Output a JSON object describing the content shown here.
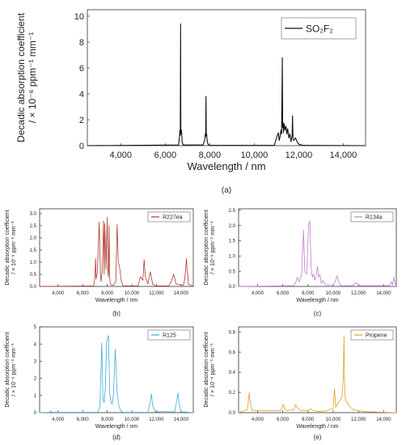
{
  "figure": {
    "panel_labels": [
      "(a)",
      "(b)",
      "(c)",
      "(d)",
      "(e)"
    ]
  },
  "chart_data": [
    {
      "id": "a",
      "type": "line",
      "panel_label": "(a)",
      "xlabel": "Wavelength / nm",
      "ylabel_line1": "Decadic absorption coefficient",
      "ylabel_line2": "/ × 10⁻⁶ ppm⁻¹ mm⁻¹",
      "xlim": [
        2500,
        15000
      ],
      "ylim": [
        0,
        10.5
      ],
      "xticks": [
        4000,
        6000,
        8000,
        10000,
        12000,
        14000
      ],
      "xtick_labels": [
        "4,000",
        "6,000",
        "8,000",
        "10,000",
        "12,000",
        "14,000"
      ],
      "yticks": [
        0,
        2,
        4,
        6,
        8,
        10
      ],
      "ytick_labels": [
        "0",
        "2",
        "4",
        "6",
        "8",
        "10"
      ],
      "legend": "top-right",
      "series": [
        {
          "name": "SO₂F₂",
          "color": "#111111",
          "x": [
            2500,
            6600,
            6640,
            6660,
            6675,
            6690,
            6700,
            6715,
            6730,
            6760,
            6800,
            7700,
            7780,
            7800,
            7815,
            7830,
            7845,
            7860,
            7880,
            7920,
            8000,
            10900,
            11000,
            11080,
            11120,
            11160,
            11200,
            11230,
            11260,
            11275,
            11290,
            11310,
            11340,
            11380,
            11420,
            11460,
            11500,
            11550,
            11600,
            11650,
            11700,
            11720,
            11740,
            11780,
            11850,
            11950,
            12050,
            12200,
            15000
          ],
          "y": [
            0,
            0.05,
            0.7,
            1.2,
            0.8,
            9.4,
            1.1,
            0.9,
            1.2,
            0.3,
            0.05,
            0.05,
            0.5,
            0.9,
            0.7,
            3.8,
            0.8,
            0.9,
            0.4,
            0.1,
            0.02,
            0.02,
            0.6,
            1.0,
            0.4,
            0.7,
            1.2,
            0.9,
            6.8,
            1.4,
            1.8,
            1.0,
            1.7,
            1.2,
            1.5,
            0.9,
            1.3,
            0.6,
            0.9,
            0.3,
            0.8,
            2.3,
            0.5,
            0.4,
            0.6,
            0.2,
            0.08,
            0.02,
            0
          ]
        }
      ]
    },
    {
      "id": "b",
      "type": "line",
      "panel_label": "(b)",
      "xlabel": "Wavelength / nm",
      "ylabel_line1": "Decadic absorption coefficient",
      "ylabel_line2": "/ × 10⁻⁶ ppm⁻¹ mm⁻¹",
      "xlim": [
        2500,
        15000
      ],
      "ylim": [
        0,
        3.2
      ],
      "xticks": [
        4000,
        6000,
        8000,
        10000,
        12000,
        14000
      ],
      "xtick_labels": [
        "4,000",
        "6,000",
        "8,000",
        "10,000",
        "12,000",
        "14,000"
      ],
      "yticks": [
        0,
        0.5,
        1.0,
        1.5,
        2.0,
        2.5,
        3.0
      ],
      "ytick_labels": [
        "0.0",
        "0.5",
        "1.0",
        "1.5",
        "2.0",
        "2.5",
        "3.0"
      ],
      "legend": "top-right",
      "series": [
        {
          "name": "R227ea",
          "color": "#b03a2e",
          "x": [
            2500,
            6900,
            7000,
            7050,
            7100,
            7200,
            7350,
            7450,
            7500,
            7600,
            7700,
            7750,
            7800,
            7900,
            8000,
            8050,
            8100,
            8150,
            8200,
            8250,
            8350,
            8500,
            8700,
            8800,
            8900,
            9000,
            9150,
            9300,
            10500,
            10700,
            10900,
            11000,
            11100,
            11300,
            11500,
            11700,
            11900,
            13000,
            13200,
            13400,
            13600,
            14200,
            14300,
            14450,
            14500,
            14550,
            14600,
            15000
          ],
          "y": [
            0,
            0.02,
            0.4,
            1.15,
            0.3,
            0.6,
            2.65,
            0.5,
            0.2,
            0.7,
            2.7,
            0.5,
            2.6,
            0.7,
            2.85,
            0.6,
            0.4,
            2.5,
            0.4,
            0.1,
            0.05,
            0.05,
            0.2,
            2.55,
            1.0,
            0.8,
            0.2,
            0.02,
            0.02,
            0.4,
            0.25,
            1.1,
            0.4,
            0.1,
            0.6,
            0.1,
            0.02,
            0.02,
            0.2,
            0.5,
            0.1,
            0.05,
            0.3,
            1.15,
            0.6,
            0.5,
            0.1,
            0
          ]
        }
      ]
    },
    {
      "id": "c",
      "type": "line",
      "panel_label": "(c)",
      "xlabel": "Wavelength / nm",
      "ylabel_line1": "Decadic absorption coefficient",
      "ylabel_line2": "/ × 10⁻⁶ ppm⁻¹ mm⁻¹",
      "xlim": [
        2500,
        15000
      ],
      "ylim": [
        0,
        2.55
      ],
      "xticks": [
        4000,
        6000,
        8000,
        10000,
        12000,
        14000
      ],
      "xtick_labels": [
        "4,000",
        "6,000",
        "8,000",
        "10,000",
        "12,000",
        "14,000"
      ],
      "yticks": [
        0,
        0.5,
        1.0,
        1.5,
        2.0,
        2.5
      ],
      "ytick_labels": [
        "0.0",
        "0.5",
        "1.0",
        "1.5",
        "2.0",
        "2.5"
      ],
      "legend": "top-right",
      "series": [
        {
          "name": "R134a",
          "color": "#c77ad6",
          "x": [
            2500,
            6800,
            7000,
            7150,
            7300,
            7500,
            7650,
            7750,
            7900,
            8050,
            8150,
            8250,
            8350,
            8450,
            8550,
            8650,
            8750,
            8850,
            8950,
            9050,
            9200,
            9400,
            10000,
            10200,
            10300,
            10450,
            10600,
            11500,
            11800,
            12000,
            12300,
            14300,
            14500,
            14600,
            14700,
            14800,
            14900,
            15000
          ],
          "y": [
            0,
            0.02,
            0.1,
            0.3,
            0.15,
            0.4,
            1.85,
            0.5,
            0.4,
            2.05,
            2.15,
            0.6,
            0.3,
            0.4,
            0.2,
            0.35,
            0.65,
            0.3,
            0.4,
            0.1,
            0.2,
            0.05,
            0.05,
            0.2,
            0.35,
            0.15,
            0.02,
            0.02,
            0.12,
            0.06,
            0.02,
            0.02,
            0.05,
            0.15,
            0.05,
            0.3,
            0.08,
            0.1
          ]
        }
      ]
    },
    {
      "id": "d",
      "type": "line",
      "panel_label": "(d)",
      "xlabel": "Wavelength / nm",
      "ylabel_line1": "Decadic absorption coefficient",
      "ylabel_line2": "/ × 10⁻⁶ ppm⁻¹ mm⁻¹",
      "xlim": [
        2500,
        15000
      ],
      "ylim": [
        0,
        5
      ],
      "xticks": [
        4000,
        6000,
        8000,
        10000,
        12000,
        14000
      ],
      "xtick_labels": [
        "4,000",
        "6,000",
        "8,000",
        "10,000",
        "12,000",
        "14,000"
      ],
      "yticks": [
        0,
        1,
        2,
        3,
        4,
        5
      ],
      "ytick_labels": [
        "0",
        "1",
        "2",
        "3",
        "4",
        "5"
      ],
      "legend": "top-right",
      "series": [
        {
          "name": "R125",
          "color": "#3aaed8",
          "x": [
            2500,
            3300,
            3400,
            3500,
            7200,
            7400,
            7550,
            7650,
            7750,
            7850,
            7950,
            8100,
            8200,
            8300,
            8400,
            8500,
            8650,
            8800,
            8950,
            9100,
            9300,
            11300,
            11500,
            11600,
            11700,
            11900,
            13500,
            13650,
            13750,
            13850,
            14000,
            15000
          ],
          "y": [
            0,
            0.02,
            0.1,
            0.02,
            0.02,
            0.3,
            4.05,
            0.8,
            0.6,
            1.5,
            4.1,
            4.5,
            1.2,
            0.6,
            0.5,
            1.0,
            3.7,
            1.2,
            0.4,
            0.1,
            0.02,
            0.02,
            0.6,
            1.1,
            0.4,
            0.05,
            0.05,
            0.7,
            1.15,
            0.5,
            0.05,
            0
          ]
        }
      ]
    },
    {
      "id": "e",
      "type": "line",
      "panel_label": "(e)",
      "xlabel": "Wavelength / nm",
      "ylabel_line1": "Decadic absorption coefficient",
      "ylabel_line2": "/ × 10⁻⁶ ppm⁻¹ mm⁻¹",
      "xlim": [
        2500,
        15000
      ],
      "ylim": [
        0,
        0.85
      ],
      "xticks": [
        4000,
        6000,
        8000,
        10000,
        12000,
        14000
      ],
      "xtick_labels": [
        "4,000",
        "6,000",
        "8,000",
        "10,000",
        "12,000",
        "14,000"
      ],
      "yticks": [
        0,
        0.2,
        0.4,
        0.6,
        0.8
      ],
      "ytick_labels": [
        "0.0",
        "0.2",
        "0.4",
        "0.6",
        "0.8"
      ],
      "legend": "top-right",
      "series": [
        {
          "name": "Propene",
          "color": "#e0a020",
          "x": [
            2500,
            3200,
            3300,
            3350,
            3400,
            3500,
            3600,
            5800,
            5950,
            6050,
            6150,
            6300,
            6900,
            7000,
            7100,
            7200,
            7400,
            8000,
            8200,
            8400,
            9000,
            9500,
            10000,
            10100,
            10200,
            10300,
            10500,
            10700,
            10800,
            10850,
            10900,
            10950,
            11000,
            11100,
            11300,
            11600,
            12000,
            12500,
            15000
          ],
          "y": [
            0,
            0.03,
            0.15,
            0.2,
            0.12,
            0.05,
            0.02,
            0.02,
            0.05,
            0.08,
            0.04,
            0.02,
            0.03,
            0.08,
            0.06,
            0.04,
            0.02,
            0.02,
            0.04,
            0.02,
            0.01,
            0.02,
            0.04,
            0.24,
            0.05,
            0.08,
            0.12,
            0.15,
            0.35,
            0.76,
            0.3,
            0.15,
            0.12,
            0.1,
            0.06,
            0.03,
            0.02,
            0.01,
            0
          ]
        }
      ]
    }
  ]
}
